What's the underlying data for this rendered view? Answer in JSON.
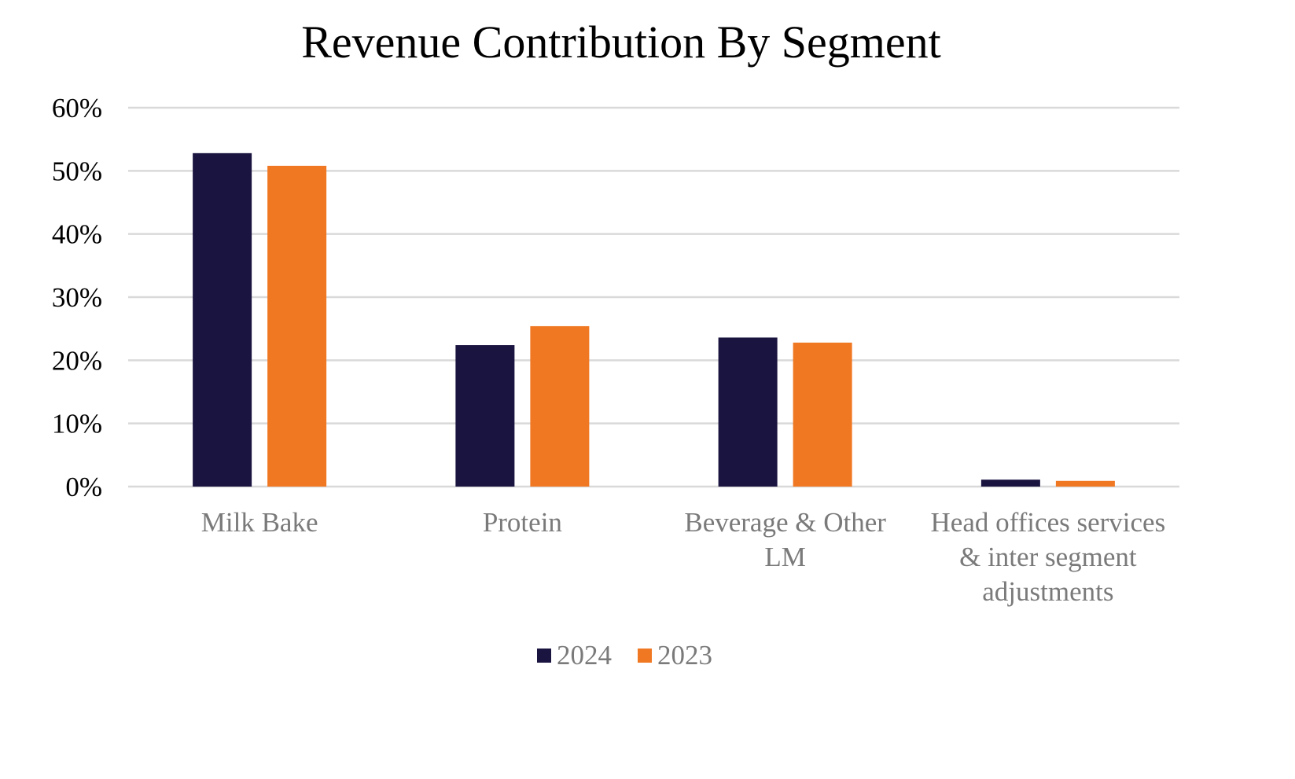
{
  "chart_data": {
    "type": "bar",
    "title": "Revenue Contribution By Segment",
    "xlabel": "",
    "ylabel": "",
    "categories": [
      "Milk Bake",
      "Protein",
      "Beverage & Other LM",
      "Head offices services & inter segment adjustments"
    ],
    "category_label_lines": [
      [
        "Milk Bake"
      ],
      [
        "Protein"
      ],
      [
        "Beverage & Other",
        "LM"
      ],
      [
        "Head offices services",
        "& inter segment",
        "adjustments"
      ]
    ],
    "series": [
      {
        "name": "2024",
        "color": "#1a1440",
        "values": [
          0.528,
          0.224,
          0.236,
          0.011
        ]
      },
      {
        "name": "2023",
        "color": "#f07823",
        "values": [
          0.508,
          0.254,
          0.228,
          0.009
        ]
      }
    ],
    "ylim": [
      0,
      0.6
    ],
    "yticks": [
      0,
      0.1,
      0.2,
      0.3,
      0.4,
      0.5,
      0.6
    ],
    "ytick_labels": [
      "0%",
      "10%",
      "20%",
      "30%",
      "40%",
      "50%",
      "60%"
    ],
    "grid": true,
    "legend_position": "bottom-center"
  }
}
